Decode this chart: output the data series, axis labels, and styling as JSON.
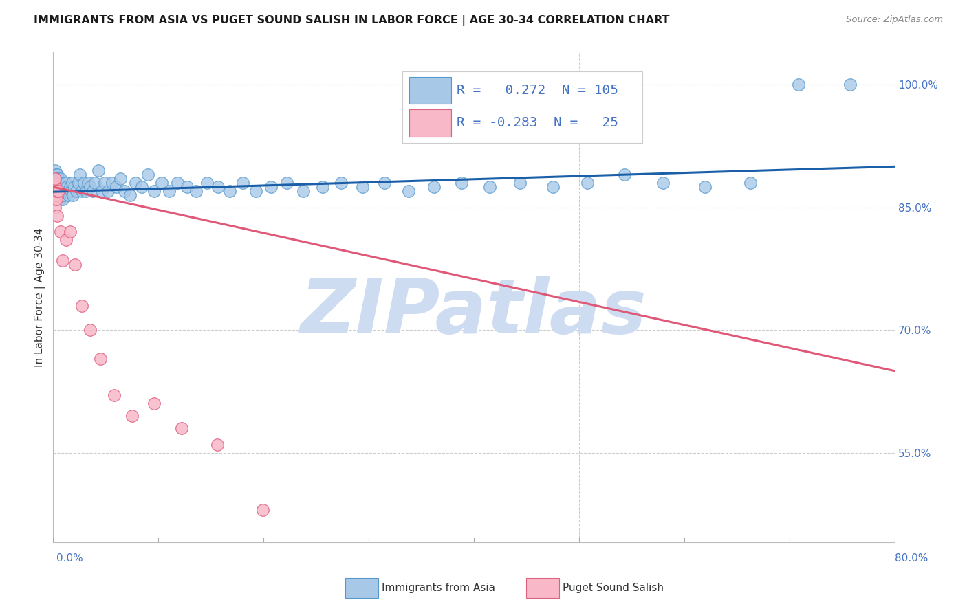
{
  "title": "IMMIGRANTS FROM ASIA VS PUGET SOUND SALISH IN LABOR FORCE | AGE 30-34 CORRELATION CHART",
  "source": "Source: ZipAtlas.com",
  "ylabel": "In Labor Force | Age 30-34",
  "right_yticks": [
    0.55,
    0.7,
    0.85,
    1.0
  ],
  "right_ytick_labels": [
    "55.0%",
    "70.0%",
    "85.0%",
    "100.0%"
  ],
  "legend_label_1": "Immigrants from Asia",
  "legend_label_2": "Puget Sound Salish",
  "blue_R": " 0.272",
  "blue_N": "105",
  "pink_R": "-0.283",
  "pink_N": " 25",
  "blue_color": "#a8c8e8",
  "blue_edge_color": "#5599cc",
  "pink_color": "#f8b8c8",
  "pink_edge_color": "#e06080",
  "blue_line_color": "#1a5fa8",
  "pink_line_color": "#e05878",
  "blue_scatter_x": [
    0.001,
    0.001,
    0.001,
    0.002,
    0.002,
    0.002,
    0.002,
    0.002,
    0.003,
    0.003,
    0.003,
    0.003,
    0.003,
    0.003,
    0.003,
    0.004,
    0.004,
    0.004,
    0.004,
    0.004,
    0.004,
    0.005,
    0.005,
    0.005,
    0.005,
    0.005,
    0.006,
    0.006,
    0.006,
    0.006,
    0.007,
    0.007,
    0.007,
    0.008,
    0.008,
    0.008,
    0.009,
    0.009,
    0.01,
    0.01,
    0.01,
    0.011,
    0.012,
    0.012,
    0.013,
    0.014,
    0.015,
    0.016,
    0.017,
    0.018,
    0.019,
    0.02,
    0.022,
    0.024,
    0.025,
    0.027,
    0.029,
    0.031,
    0.033,
    0.035,
    0.038,
    0.04,
    0.043,
    0.046,
    0.049,
    0.052,
    0.056,
    0.06,
    0.064,
    0.068,
    0.073,
    0.078,
    0.084,
    0.09,
    0.096,
    0.103,
    0.11,
    0.118,
    0.127,
    0.136,
    0.146,
    0.157,
    0.168,
    0.18,
    0.193,
    0.207,
    0.222,
    0.238,
    0.256,
    0.274,
    0.294,
    0.315,
    0.338,
    0.362,
    0.388,
    0.415,
    0.444,
    0.475,
    0.508,
    0.543,
    0.58,
    0.62,
    0.663,
    0.709,
    0.758
  ],
  "blue_scatter_y": [
    0.88,
    0.89,
    0.87,
    0.86,
    0.875,
    0.885,
    0.895,
    0.87,
    0.865,
    0.875,
    0.885,
    0.89,
    0.87,
    0.88,
    0.86,
    0.87,
    0.88,
    0.89,
    0.875,
    0.865,
    0.885,
    0.87,
    0.88,
    0.865,
    0.875,
    0.885,
    0.87,
    0.88,
    0.86,
    0.875,
    0.865,
    0.875,
    0.885,
    0.87,
    0.88,
    0.865,
    0.875,
    0.86,
    0.87,
    0.88,
    0.865,
    0.875,
    0.87,
    0.88,
    0.875,
    0.87,
    0.865,
    0.875,
    0.87,
    0.88,
    0.865,
    0.875,
    0.87,
    0.88,
    0.89,
    0.87,
    0.88,
    0.87,
    0.88,
    0.875,
    0.87,
    0.88,
    0.895,
    0.87,
    0.88,
    0.87,
    0.88,
    0.875,
    0.885,
    0.87,
    0.865,
    0.88,
    0.875,
    0.89,
    0.87,
    0.88,
    0.87,
    0.88,
    0.875,
    0.87,
    0.88,
    0.875,
    0.87,
    0.88,
    0.87,
    0.875,
    0.88,
    0.87,
    0.875,
    0.88,
    0.875,
    0.88,
    0.87,
    0.875,
    0.88,
    0.875,
    0.88,
    0.875,
    0.88,
    0.89,
    0.88,
    0.875,
    0.88,
    1.0,
    1.0
  ],
  "pink_scatter_x": [
    0.001,
    0.001,
    0.001,
    0.002,
    0.002,
    0.002,
    0.002,
    0.003,
    0.003,
    0.004,
    0.005,
    0.007,
    0.009,
    0.012,
    0.016,
    0.021,
    0.027,
    0.035,
    0.045,
    0.058,
    0.075,
    0.096,
    0.122,
    0.156,
    0.199
  ],
  "pink_scatter_y": [
    0.87,
    0.88,
    0.86,
    0.85,
    0.865,
    0.875,
    0.885,
    0.86,
    0.87,
    0.84,
    0.87,
    0.82,
    0.785,
    0.81,
    0.82,
    0.78,
    0.73,
    0.7,
    0.665,
    0.62,
    0.595,
    0.61,
    0.58,
    0.56,
    0.48
  ],
  "xlim": [
    0.0,
    0.8
  ],
  "ylim": [
    0.44,
    1.04
  ],
  "blue_trend_x": [
    0.0,
    0.8
  ],
  "blue_trend_y": [
    0.869,
    0.9
  ],
  "pink_trend_x": [
    0.0,
    0.8
  ],
  "pink_trend_y": [
    0.875,
    0.65
  ],
  "watermark": "ZIPatlas",
  "watermark_color": "#cddcf0",
  "grid_color": "#cccccc",
  "background_color": "#ffffff"
}
